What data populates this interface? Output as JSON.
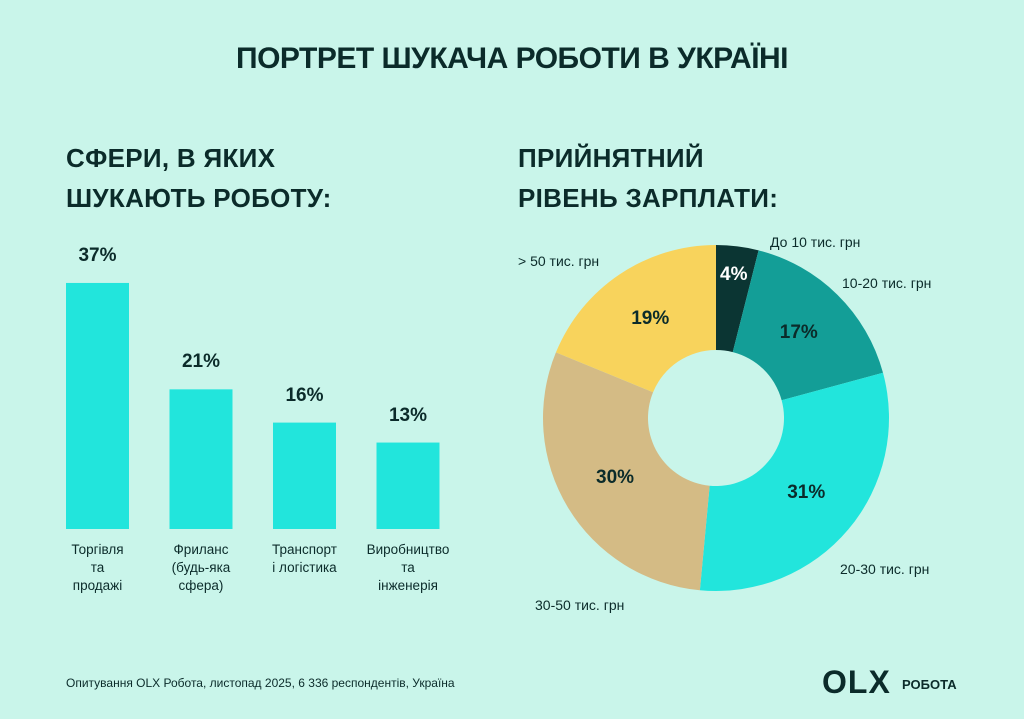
{
  "title": "ПОРТРЕТ ШУКАЧА РОБОТИ В УКРАЇНІ",
  "chart_data": [
    {
      "type": "bar",
      "title": "СФЕРИ, В ЯКИХ\nШУКАЮТЬ РОБОТУ:",
      "categories": [
        "Торгівля\nта\nпродажі",
        "Фриланс\n(будь-яка\nсфера)",
        "Транспорт\nі логістика",
        "Виробництво\nта\nінженерія"
      ],
      "values": [
        37,
        21,
        16,
        13
      ],
      "value_labels": [
        "37%",
        "21%",
        "16%",
        "13%"
      ],
      "color": "#22e5dc"
    },
    {
      "type": "donut",
      "title": "ПРИЙНЯТНИЙ\nРІВЕНЬ ЗАРПЛАТИ:",
      "categories": [
        "До 10 тис. грн",
        "10-20 тис. грн",
        "20-30 тис. грн",
        "30-50 тис. грн",
        "> 50 тис. грн"
      ],
      "values": [
        4,
        17,
        31,
        30,
        19
      ],
      "value_labels": [
        "4%",
        "17%",
        "31%",
        "30%",
        "19%"
      ],
      "colors": [
        "#0b3533",
        "#139e97",
        "#22e5dc",
        "#d4bb85",
        "#f8d35c"
      ]
    }
  ],
  "footer": "Опитування OLX Робота, листопад 2025, 6 336 респондентів, Україна",
  "logo": {
    "brand": "OLX",
    "label": "РОБОТА"
  }
}
